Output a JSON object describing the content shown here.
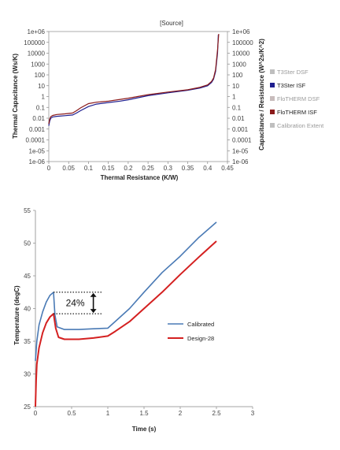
{
  "chart_data": [
    {
      "type": "line",
      "title": "[Source]",
      "xlabel": "Thermal Resistance (K/W)",
      "ylabel": "Thermal Capacitance (Ws/K)",
      "y2label": "Capacitance / Resistance (W^2s/K^2)",
      "xlim": [
        0,
        0.45
      ],
      "ylim": [
        1e-06,
        1000000.0
      ],
      "yscale": "log",
      "grid": false,
      "legend_position": "right",
      "x_ticks": [
        "0",
        "0.05",
        "0.1",
        "0.15",
        "0.2",
        "0.25",
        "0.3",
        "0.35",
        "0.4",
        "0.45"
      ],
      "y_ticks": [
        "1e-06",
        "1e-05",
        "0.0001",
        "0.001",
        "0.01",
        "0.1",
        "1",
        "10",
        "100",
        "1000",
        "10000",
        "100000",
        "1e+06"
      ],
      "legend": [
        {
          "name": "T3Ster DSF",
          "color": "#bfbfbf"
        },
        {
          "name": "T3Ster ISF",
          "color": "#1f1f8f"
        },
        {
          "name": "FloTHERM DSF",
          "color": "#c8bcbc"
        },
        {
          "name": "FloTHERM ISF",
          "color": "#8b1a1a"
        },
        {
          "name": "Calibration Extent",
          "color": "#bfbfbf"
        }
      ],
      "series": [
        {
          "color": "#1f1f8f",
          "x": [
            0.0,
            0.002,
            0.005,
            0.01,
            0.02,
            0.04,
            0.06,
            0.07,
            0.08,
            0.1,
            0.12,
            0.15,
            0.18,
            0.2,
            0.25,
            0.3,
            0.35,
            0.38,
            0.4,
            0.41,
            0.415,
            0.42,
            0.425,
            0.427
          ],
          "y": [
            0.002,
            0.005,
            0.01,
            0.013,
            0.015,
            0.017,
            0.02,
            0.03,
            0.05,
            0.12,
            0.2,
            0.28,
            0.38,
            0.5,
            1.2,
            2.2,
            3.8,
            6,
            10,
            20,
            40,
            200,
            10000,
            500000
          ]
        },
        {
          "color": "#8b1a1a",
          "x": [
            0.0,
            0.002,
            0.005,
            0.01,
            0.02,
            0.04,
            0.06,
            0.07,
            0.08,
            0.1,
            0.12,
            0.15,
            0.18,
            0.2,
            0.25,
            0.3,
            0.35,
            0.38,
            0.4,
            0.41,
            0.415,
            0.42,
            0.425,
            0.428
          ],
          "y": [
            0.003,
            0.008,
            0.014,
            0.018,
            0.022,
            0.025,
            0.03,
            0.05,
            0.09,
            0.22,
            0.3,
            0.38,
            0.55,
            0.7,
            1.5,
            2.6,
            4.2,
            7,
            12,
            25,
            50,
            300,
            20000,
            600000
          ]
        }
      ]
    },
    {
      "type": "line",
      "xlabel": "Time (s)",
      "ylabel": "Temperature (degC)",
      "xlim": [
        0,
        3
      ],
      "ylim": [
        25,
        55
      ],
      "grid": false,
      "legend_position": "right",
      "x_ticks": [
        "0",
        "0.5",
        "1",
        "1.5",
        "2",
        "2.5",
        "3"
      ],
      "y_ticks": [
        "25",
        "30",
        "35",
        "40",
        "45",
        "50",
        "55"
      ],
      "annotation": "24%",
      "series": [
        {
          "name": "Calibrated",
          "color": "#4a7ab5",
          "x": [
            0,
            0.02,
            0.05,
            0.1,
            0.15,
            0.2,
            0.25,
            0.27,
            0.3,
            0.4,
            0.6,
            0.8,
            1.0,
            1.1,
            1.3,
            1.5,
            1.75,
            2.0,
            2.25,
            2.5
          ],
          "y": [
            32,
            35,
            37.5,
            39.5,
            41,
            42,
            42.5,
            39,
            37.2,
            36.8,
            36.8,
            36.9,
            37,
            38,
            40,
            42.5,
            45.5,
            48,
            50.8,
            53.2
          ]
        },
        {
          "name": "Design-28",
          "color": "#d42020",
          "x": [
            0,
            0.01,
            0.02,
            0.05,
            0.1,
            0.15,
            0.2,
            0.25,
            0.28,
            0.32,
            0.4,
            0.6,
            0.8,
            1.0,
            1.1,
            1.3,
            1.5,
            1.75,
            2.0,
            2.25,
            2.5
          ],
          "y": [
            25,
            29,
            31.5,
            34,
            36.3,
            37.8,
            38.7,
            39.2,
            37,
            35.6,
            35.3,
            35.3,
            35.5,
            35.8,
            36.5,
            38,
            40,
            42.5,
            45.2,
            47.8,
            50.3
          ]
        }
      ]
    }
  ]
}
